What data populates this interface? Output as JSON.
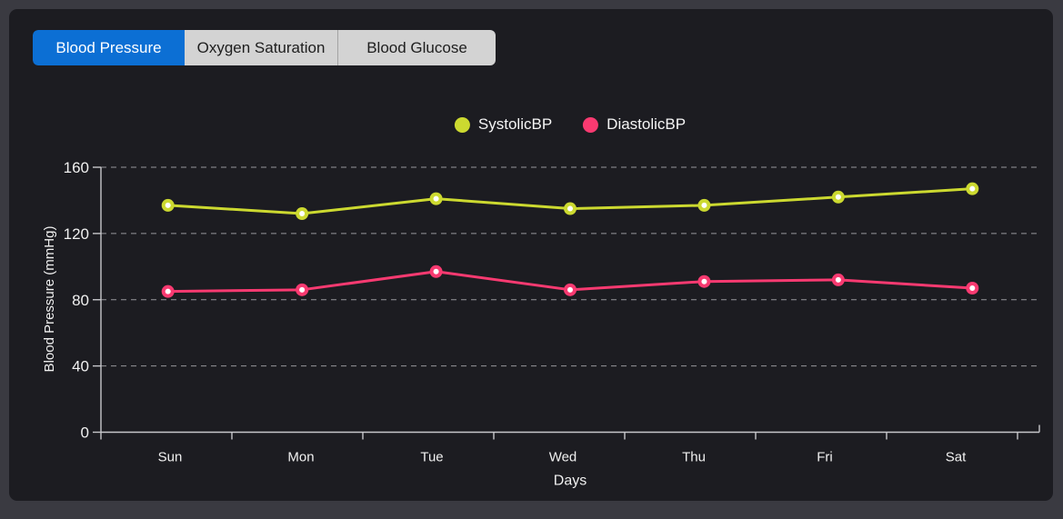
{
  "tabs": [
    {
      "label": "Blood Pressure",
      "active": true
    },
    {
      "label": "Oxygen Saturation",
      "active": false
    },
    {
      "label": "Blood Glucose",
      "active": false
    }
  ],
  "colors": {
    "accent": "#0c6fd4",
    "tab_inactive_bg": "#d3d3d3",
    "frame_bg": "#3a3a41",
    "panel_bg": "#1c1c21",
    "grid": "#96969c",
    "axis": "#c7c7cb",
    "systolic": "#ccd930",
    "diastolic": "#f93a71"
  },
  "chart_data": {
    "type": "line",
    "categories": [
      "Sun",
      "Mon",
      "Tue",
      "Wed",
      "Thu",
      "Fri",
      "Sat"
    ],
    "series": [
      {
        "name": "SystolicBP",
        "color": "#ccd930",
        "values": [
          137,
          132,
          141,
          135,
          137,
          142,
          147
        ]
      },
      {
        "name": "DiastolicBP",
        "color": "#f93a71",
        "values": [
          85,
          86,
          97,
          86,
          91,
          92,
          87
        ]
      }
    ],
    "xlabel": "Days",
    "ylabel": "Blood Pressure (mmHg)",
    "ylim": [
      0,
      160
    ],
    "yticks": [
      0,
      40,
      80,
      120,
      160
    ],
    "grid": "horizontal-dashed",
    "legend_position": "top-center",
    "marker": "circle-with-white-center"
  }
}
